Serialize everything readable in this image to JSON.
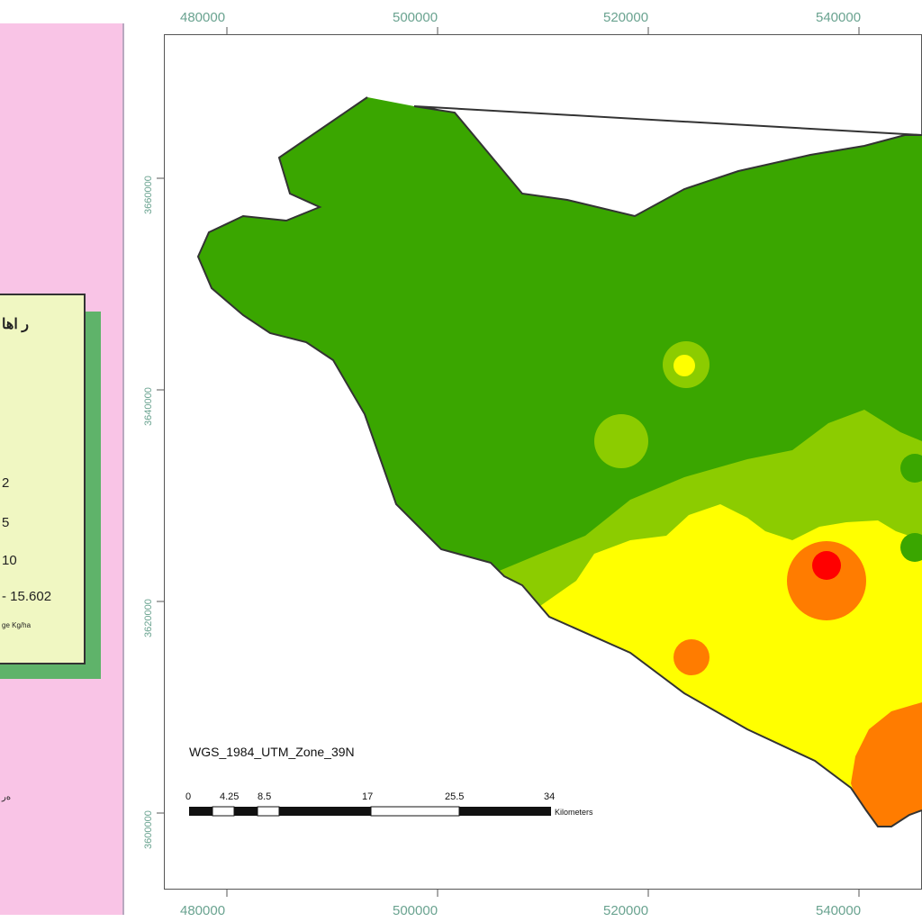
{
  "legend": {
    "title": "ر اها",
    "items": [
      "2",
      "5",
      "10",
      "- 15.602"
    ],
    "unit": "ge Kg/ha",
    "side_note": "ه‌ر"
  },
  "projection": "WGS_1984_UTM_Zone_39N",
  "scale_bar": {
    "labels": [
      "0",
      "4.25",
      "8.5",
      "17",
      "25.5",
      "34"
    ],
    "unit": "Kilometers"
  },
  "grid": {
    "x_labels": [
      "480000",
      "500000",
      "520000",
      "540000"
    ],
    "y_labels": [
      "3660000",
      "3640000",
      "3620000",
      "3600000"
    ]
  },
  "colors": {
    "dark_green": "#3aa600",
    "light_green": "#8ccc00",
    "yellow": "#ffff00",
    "orange": "#ff7c00",
    "red": "#ff0000",
    "panel": "#f9c4e6",
    "legend_bg": "#f0f7c2",
    "legend_shadow": "#5fb36a",
    "coord_text": "#6aa390"
  }
}
